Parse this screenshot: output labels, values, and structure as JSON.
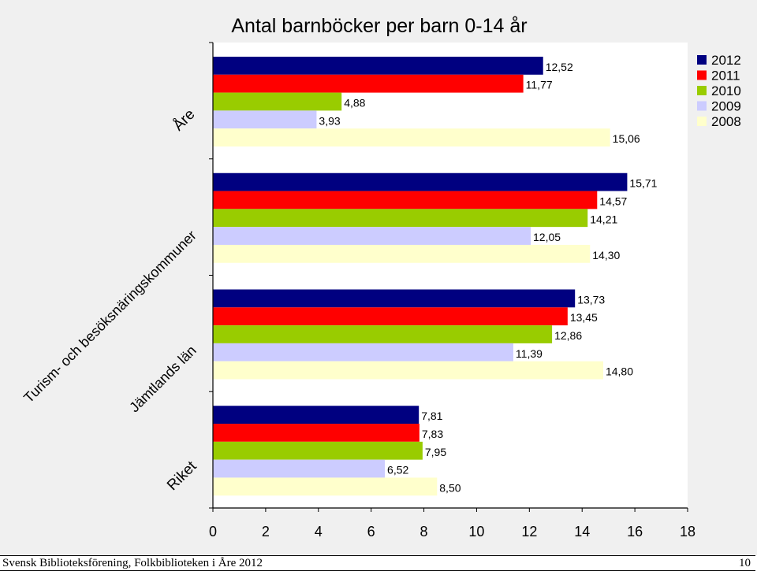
{
  "chart_data": {
    "type": "bar",
    "orientation": "horizontal",
    "title": "Antal barnböcker per barn 0-14 år",
    "categories": [
      "Åre",
      "Turism- och besöksnäringskommuner",
      "Jämtlands län",
      "Riket"
    ],
    "series": [
      {
        "name": "2012",
        "color": "#000080",
        "values": [
          12.52,
          15.71,
          13.73,
          7.81
        ],
        "labels": [
          "12,52",
          "15,71",
          "13,73",
          "7,81"
        ]
      },
      {
        "name": "2011",
        "color": "#ff0000",
        "values": [
          11.77,
          14.57,
          13.45,
          7.83
        ],
        "labels": [
          "11,77",
          "14,57",
          "13,45",
          "7,83"
        ]
      },
      {
        "name": "2010",
        "color": "#99cc00",
        "values": [
          4.88,
          14.21,
          12.86,
          7.95
        ],
        "labels": [
          "4,88",
          "14,21",
          "12,86",
          "7,95"
        ]
      },
      {
        "name": "2009",
        "color": "#ccccff",
        "values": [
          3.93,
          12.05,
          11.39,
          6.52
        ],
        "labels": [
          "3,93",
          "12,05",
          "11,39",
          "6,52"
        ]
      },
      {
        "name": "2008",
        "color": "#ffffcc",
        "values": [
          15.06,
          14.3,
          14.8,
          8.5
        ],
        "labels": [
          "15,06",
          "14,30",
          "14,80",
          "8,50"
        ]
      }
    ],
    "xlim": [
      0,
      18
    ],
    "xticks": [
      "0",
      "2",
      "4",
      "6",
      "8",
      "10",
      "12",
      "14",
      "16",
      "18"
    ],
    "legend": "top-right",
    "grid": false
  },
  "footer": {
    "source": "Svensk Biblioteksförening, Folkbiblioteken i Åre 2012",
    "page_number": "10"
  }
}
